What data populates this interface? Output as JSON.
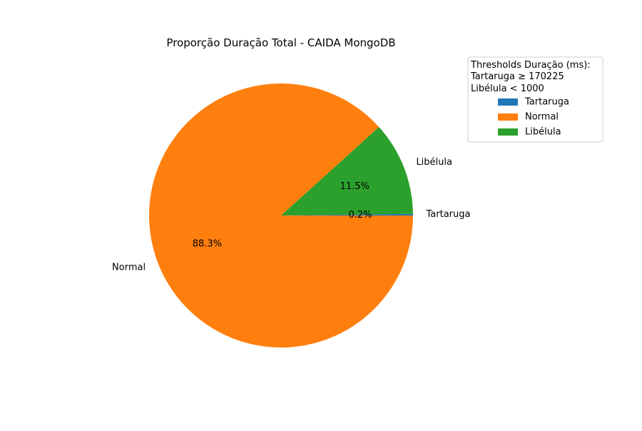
{
  "chart_data": {
    "type": "pie",
    "title": "Proporção Duração Total - CAIDA MongoDB",
    "slices": [
      {
        "label": "Tartaruga",
        "value": 0.2,
        "pct_label": "0.2%",
        "color": "#1f77b4"
      },
      {
        "label": "Libélula",
        "value": 11.5,
        "pct_label": "11.5%",
        "color": "#2ca02c"
      },
      {
        "label": "Normal",
        "value": 88.3,
        "pct_label": "88.3%",
        "color": "#ff7f0e"
      }
    ],
    "legend": {
      "title_lines": [
        "Thresholds Duração (ms):",
        "Tartaruga ≥ 170225",
        "Libélula < 1000"
      ],
      "items": [
        {
          "label": "Tartaruga",
          "color": "#1f77b4"
        },
        {
          "label": "Normal",
          "color": "#ff7f0e"
        },
        {
          "label": "Libélula",
          "color": "#2ca02c"
        }
      ],
      "placement": "top-right, outside plot"
    }
  }
}
